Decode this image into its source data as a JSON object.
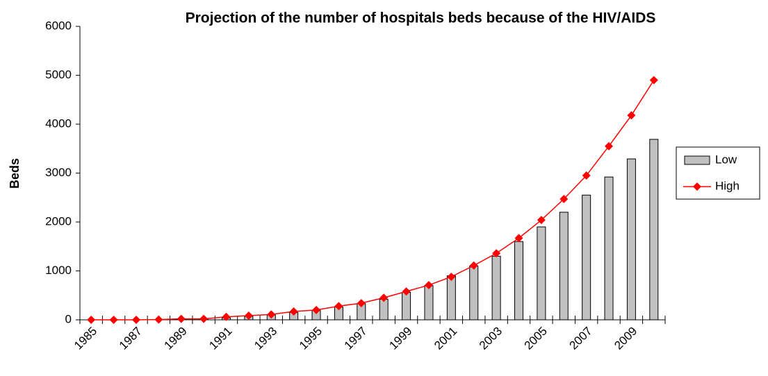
{
  "chart_data": {
    "type": "bar",
    "title": "Projection of the number of hospitals beds because of the HIV/AIDS",
    "y_label": "Beds",
    "categories": [
      "1985",
      null,
      "1987",
      null,
      "1989",
      null,
      "1991",
      null,
      "1993",
      null,
      "1995",
      null,
      "1997",
      null,
      "1999",
      null,
      "2001",
      null,
      "2003",
      null,
      "2005",
      null,
      "2007",
      null,
      "2009",
      null
    ],
    "series": [
      {
        "name": "Low",
        "type": "bar",
        "color": "#c0c0c0",
        "values": [
          0,
          1,
          2,
          5,
          15,
          20,
          40,
          70,
          100,
          150,
          190,
          260,
          330,
          420,
          560,
          700,
          900,
          1100,
          1300,
          1600,
          1900,
          2200,
          2550,
          2920,
          3290,
          3690
        ]
      },
      {
        "name": "High",
        "type": "line",
        "color": "#ff0000",
        "values": [
          0,
          0,
          0,
          5,
          20,
          20,
          60,
          85,
          110,
          170,
          200,
          280,
          340,
          450,
          580,
          710,
          880,
          1110,
          1360,
          1670,
          2040,
          2470,
          2950,
          3550,
          4180,
          4900
        ]
      }
    ],
    "ylim": [
      0,
      6000
    ],
    "yticks": [
      0,
      1000,
      2000,
      3000,
      4000,
      5000,
      6000
    ],
    "legend": "right"
  }
}
